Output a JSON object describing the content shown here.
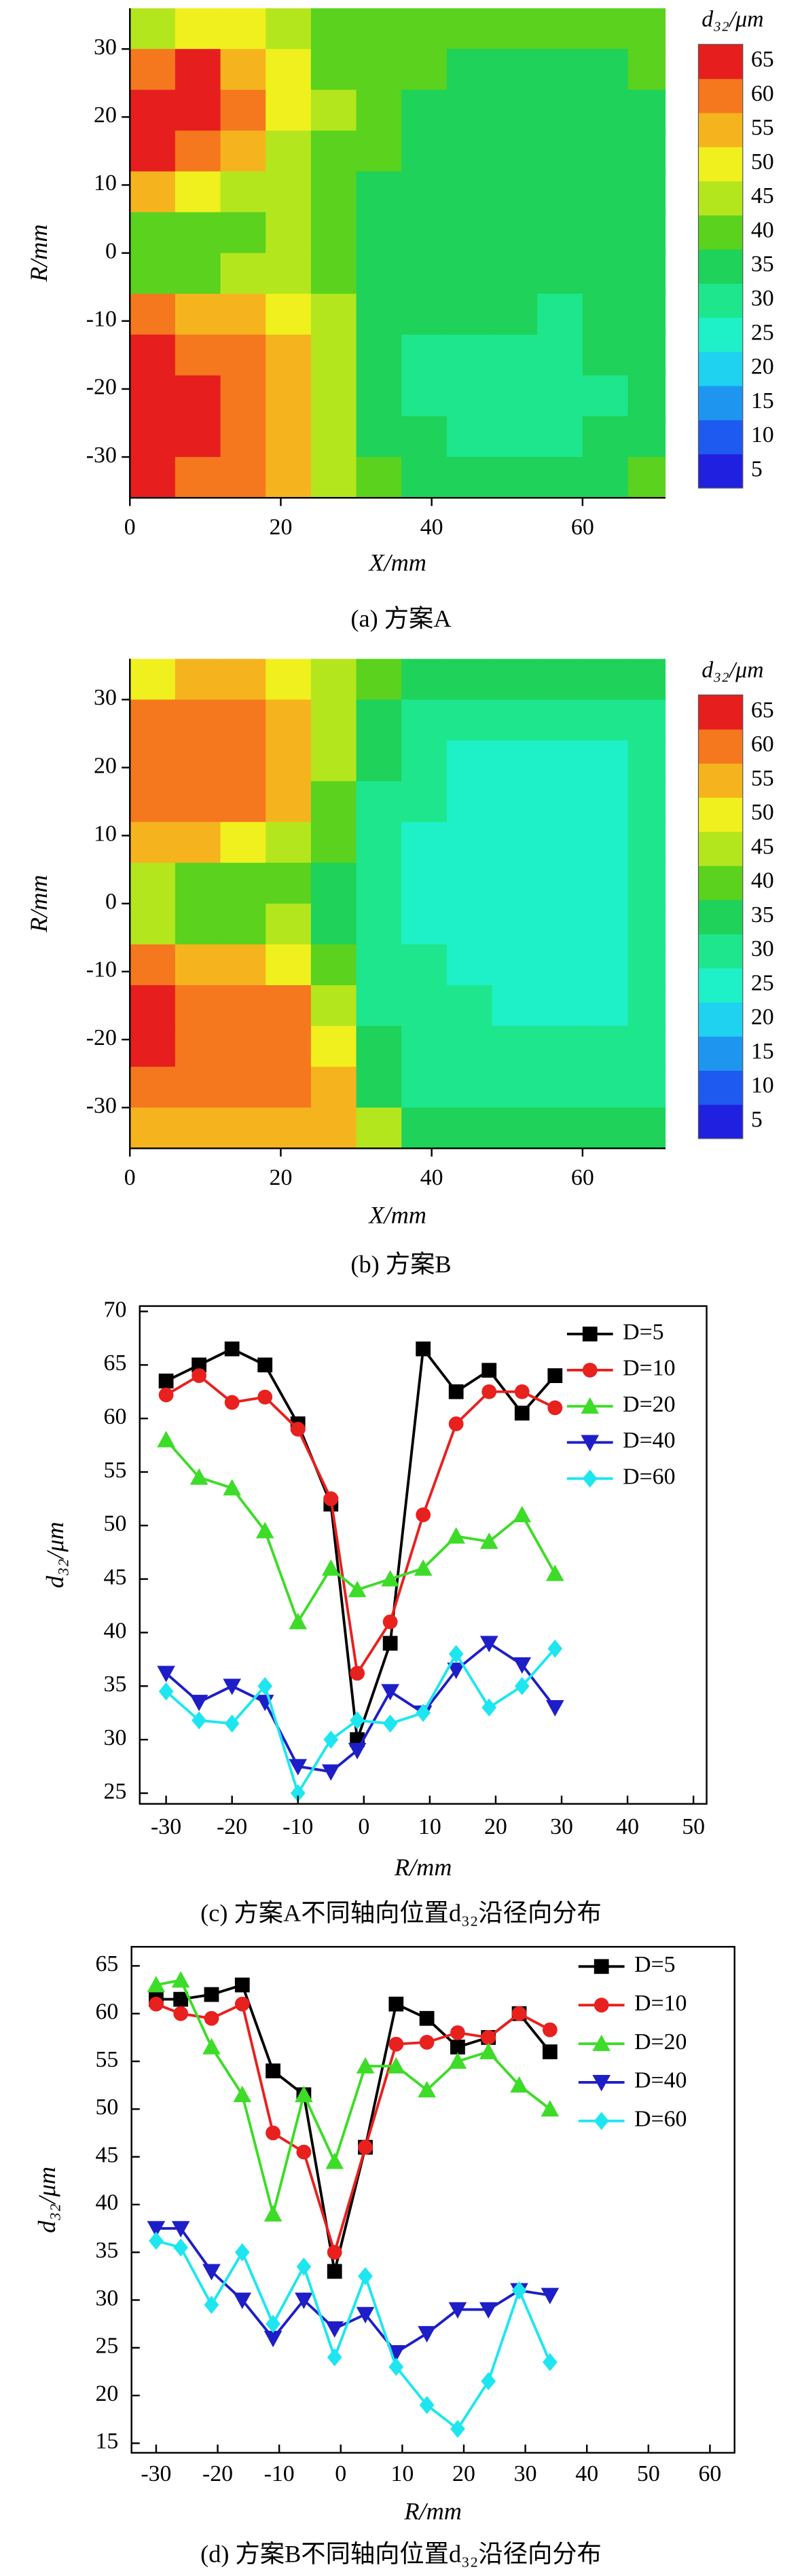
{
  "chart_data": [
    {
      "type": "heatmap",
      "caption": "(a) 方案A",
      "xlabel": "X/mm",
      "ylabel": "R/mm",
      "xlim": [
        0,
        71
      ],
      "ylim": [
        -36,
        36
      ],
      "xticks": [
        0,
        20,
        40,
        60
      ],
      "yticks": [
        -30,
        -20,
        -10,
        0,
        10,
        20,
        30
      ],
      "x": [
        3,
        9,
        15,
        21,
        27,
        33,
        39,
        45,
        51,
        57,
        63,
        69
      ],
      "r": [
        33,
        27,
        21,
        15,
        9,
        3,
        -3,
        -9,
        -15,
        -21,
        -27,
        -33
      ],
      "z": [
        [
          45,
          50,
          50,
          45,
          40,
          40,
          40,
          40,
          40,
          40,
          40,
          40
        ],
        [
          60,
          65,
          55,
          50,
          40,
          40,
          40,
          35,
          35,
          35,
          35,
          40
        ],
        [
          65,
          65,
          60,
          50,
          45,
          40,
          35,
          35,
          35,
          35,
          35,
          35
        ],
        [
          65,
          60,
          55,
          45,
          40,
          40,
          35,
          35,
          35,
          35,
          35,
          35
        ],
        [
          55,
          50,
          45,
          45,
          40,
          35,
          35,
          35,
          35,
          35,
          35,
          35
        ],
        [
          40,
          40,
          40,
          45,
          40,
          35,
          35,
          35,
          35,
          35,
          35,
          35
        ],
        [
          40,
          40,
          45,
          45,
          40,
          35,
          35,
          35,
          35,
          35,
          35,
          35
        ],
        [
          60,
          55,
          55,
          50,
          45,
          35,
          35,
          35,
          35,
          30,
          35,
          35
        ],
        [
          65,
          60,
          60,
          55,
          45,
          35,
          30,
          30,
          30,
          30,
          35,
          35
        ],
        [
          65,
          65,
          60,
          55,
          45,
          35,
          30,
          30,
          30,
          30,
          30,
          35
        ],
        [
          65,
          65,
          60,
          55,
          45,
          35,
          35,
          30,
          30,
          30,
          35,
          35
        ],
        [
          65,
          60,
          60,
          55,
          45,
          40,
          35,
          35,
          35,
          35,
          35,
          40
        ]
      ],
      "colorbar": {
        "title": "d₃₂/μm",
        "levels": [
          5,
          10,
          15,
          20,
          25,
          30,
          35,
          40,
          45,
          50,
          55,
          60,
          65
        ],
        "colors": [
          "#2020e0",
          "#1e5af0",
          "#1e96f0",
          "#1ed2f0",
          "#1ef0c8",
          "#1ee68c",
          "#1ed25a",
          "#5ad21e",
          "#b4e61e",
          "#f0f01e",
          "#f5b41e",
          "#f5781e",
          "#e61e1e"
        ]
      }
    },
    {
      "type": "heatmap",
      "caption": "(b) 方案B",
      "xlabel": "X/mm",
      "ylabel": "R/mm",
      "xlim": [
        0,
        71
      ],
      "ylim": [
        -36,
        36
      ],
      "xticks": [
        0,
        20,
        40,
        60
      ],
      "yticks": [
        -30,
        -20,
        -10,
        0,
        10,
        20,
        30
      ],
      "x": [
        3,
        9,
        15,
        21,
        27,
        33,
        39,
        45,
        51,
        57,
        63,
        69
      ],
      "r": [
        33,
        27,
        21,
        15,
        9,
        3,
        -3,
        -9,
        -15,
        -21,
        -27,
        -33
      ],
      "z": [
        [
          50,
          55,
          55,
          50,
          45,
          40,
          35,
          35,
          35,
          35,
          35,
          35
        ],
        [
          60,
          60,
          60,
          55,
          45,
          35,
          30,
          30,
          30,
          30,
          30,
          30
        ],
        [
          60,
          60,
          60,
          55,
          45,
          35,
          30,
          25,
          25,
          25,
          25,
          30
        ],
        [
          60,
          60,
          60,
          55,
          40,
          30,
          30,
          25,
          25,
          25,
          25,
          30
        ],
        [
          55,
          55,
          50,
          45,
          40,
          30,
          25,
          25,
          25,
          25,
          25,
          30
        ],
        [
          45,
          40,
          40,
          40,
          35,
          30,
          25,
          25,
          25,
          25,
          25,
          30
        ],
        [
          45,
          40,
          40,
          45,
          35,
          30,
          25,
          25,
          25,
          25,
          25,
          30
        ],
        [
          60,
          55,
          55,
          50,
          40,
          30,
          30,
          25,
          25,
          25,
          25,
          30
        ],
        [
          65,
          60,
          60,
          60,
          45,
          30,
          30,
          30,
          25,
          25,
          25,
          30
        ],
        [
          65,
          60,
          60,
          60,
          50,
          35,
          30,
          30,
          30,
          30,
          30,
          30
        ],
        [
          60,
          60,
          60,
          60,
          55,
          35,
          30,
          30,
          30,
          30,
          30,
          30
        ],
        [
          55,
          55,
          55,
          55,
          55,
          45,
          35,
          35,
          35,
          35,
          35,
          35
        ]
      ],
      "colorbar": {
        "title": "d₃₂/μm",
        "levels": [
          5,
          10,
          15,
          20,
          25,
          30,
          35,
          40,
          45,
          50,
          55,
          60,
          65
        ],
        "colors": [
          "#2020e0",
          "#1e5af0",
          "#1e96f0",
          "#1ed2f0",
          "#1ef0c8",
          "#1ee68c",
          "#1ed25a",
          "#5ad21e",
          "#b4e61e",
          "#f0f01e",
          "#f5b41e",
          "#f5781e",
          "#e61e1e"
        ]
      }
    },
    {
      "type": "line",
      "caption": "(c) 方案A不同轴向位置d₃₂沿径向分布",
      "xlabel": "R/mm",
      "ylabel": "d₃₂/μm",
      "xlim": [
        -34,
        52
      ],
      "ylim": [
        24,
        70.5
      ],
      "xticks": [
        -30,
        -20,
        -10,
        0,
        10,
        20,
        30,
        40,
        50
      ],
      "yticks": [
        25,
        30,
        35,
        40,
        45,
        50,
        55,
        60,
        65,
        70
      ],
      "x": [
        -30,
        -25,
        -20,
        -15,
        -10,
        -5,
        -1,
        4,
        9,
        14,
        19,
        24,
        29
      ],
      "series": [
        {
          "name": "D=5",
          "color": "#000000",
          "marker": "square",
          "values": [
            63.5,
            65,
            66.5,
            65,
            59.5,
            52,
            30,
            39,
            66.5,
            62.5,
            64.5,
            60.5,
            64
          ]
        },
        {
          "name": "D=10",
          "color": "#e8201e",
          "marker": "circle",
          "values": [
            62.2,
            64,
            61.5,
            62,
            59,
            52.5,
            36.2,
            41,
            51,
            59.5,
            62.5,
            62.5,
            61
          ]
        },
        {
          "name": "D=20",
          "color": "#3ddc28",
          "marker": "triangle-up",
          "values": [
            58,
            54.5,
            53.5,
            49.5,
            41,
            46,
            44,
            45,
            46,
            49,
            48.5,
            51,
            45.5
          ]
        },
        {
          "name": "D=40",
          "color": "#1e1ec8",
          "marker": "triangle-down",
          "values": [
            36.2,
            33.5,
            35,
            33.5,
            27.5,
            27,
            29,
            34.5,
            32.5,
            36.5,
            39,
            37,
            33
          ]
        },
        {
          "name": "D=60",
          "color": "#1ee6f0",
          "marker": "diamond",
          "values": [
            34.5,
            31.8,
            31.5,
            35,
            25,
            30,
            31.8,
            31.5,
            32.5,
            38,
            33,
            35,
            38.5
          ]
        }
      ]
    },
    {
      "type": "line",
      "caption": "(d) 方案B不同轴向位置d₃₂沿径向分布",
      "xlabel": "R/mm",
      "ylabel": "d₃₂/μm",
      "xlim": [
        -34,
        64
      ],
      "ylim": [
        14,
        67
      ],
      "xticks": [
        -30,
        -20,
        -10,
        0,
        10,
        20,
        30,
        40,
        50,
        60
      ],
      "yticks": [
        15,
        20,
        25,
        30,
        35,
        40,
        45,
        50,
        55,
        60,
        65
      ],
      "x": [
        -30,
        -26,
        -21,
        -16,
        -11,
        -6,
        -1,
        4,
        9,
        14,
        19,
        24,
        29,
        34
      ],
      "series": [
        {
          "name": "D=5",
          "color": "#000000",
          "marker": "square",
          "values": [
            61.5,
            61.5,
            62,
            63,
            54,
            51.5,
            33,
            46,
            61,
            59.5,
            56.5,
            57.5,
            60,
            56
          ]
        },
        {
          "name": "D=10",
          "color": "#e8201e",
          "marker": "circle",
          "values": [
            61,
            60,
            59.5,
            61,
            47.5,
            45.5,
            35,
            46,
            56.8,
            57,
            58,
            57.5,
            60,
            58.3
          ]
        },
        {
          "name": "D=20",
          "color": "#3ddc28",
          "marker": "triangle-up",
          "values": [
            63,
            63.5,
            56.5,
            51.5,
            39,
            51.5,
            44.5,
            54.5,
            54.5,
            52,
            55,
            56,
            52.5,
            50
          ]
        },
        {
          "name": "D=40",
          "color": "#1e1ec8",
          "marker": "triangle-down",
          "values": [
            37.5,
            37.5,
            33,
            30,
            26,
            30,
            27,
            28.5,
            24.5,
            26.5,
            29,
            29,
            31,
            30.5
          ]
        },
        {
          "name": "D=60",
          "color": "#1ee6f0",
          "marker": "diamond",
          "values": [
            36.2,
            35.5,
            29.5,
            35,
            27.5,
            33.5,
            24,
            32.5,
            23,
            19,
            16.5,
            21.5,
            31,
            23.5
          ]
        }
      ]
    }
  ]
}
